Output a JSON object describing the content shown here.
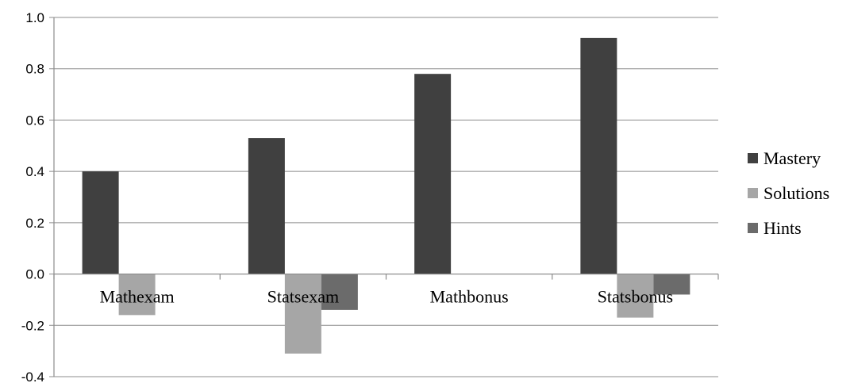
{
  "chart_data": {
    "type": "bar",
    "title": "",
    "xlabel": "",
    "ylabel": "",
    "categories": [
      "Mathexam",
      "Statsexam",
      "Mathbonus",
      "Statsbonus"
    ],
    "series": [
      {
        "name": "Mastery",
        "values": [
          0.4,
          0.53,
          0.78,
          0.92
        ],
        "color": "#404040"
      },
      {
        "name": "Solutions",
        "values": [
          -0.16,
          -0.31,
          0,
          -0.17
        ],
        "color": "#a6a6a6"
      },
      {
        "name": "Hints",
        "values": [
          0,
          -0.14,
          0,
          -0.08
        ],
        "color": "#6b6b6b"
      }
    ],
    "ylim": [
      -0.4,
      1.0
    ],
    "yticks": [
      "-0.4",
      "-0.2",
      "0.0",
      "0.2",
      "0.4",
      "0.6",
      "0.8",
      "1.0"
    ],
    "grid": true,
    "legend_position": "right"
  }
}
